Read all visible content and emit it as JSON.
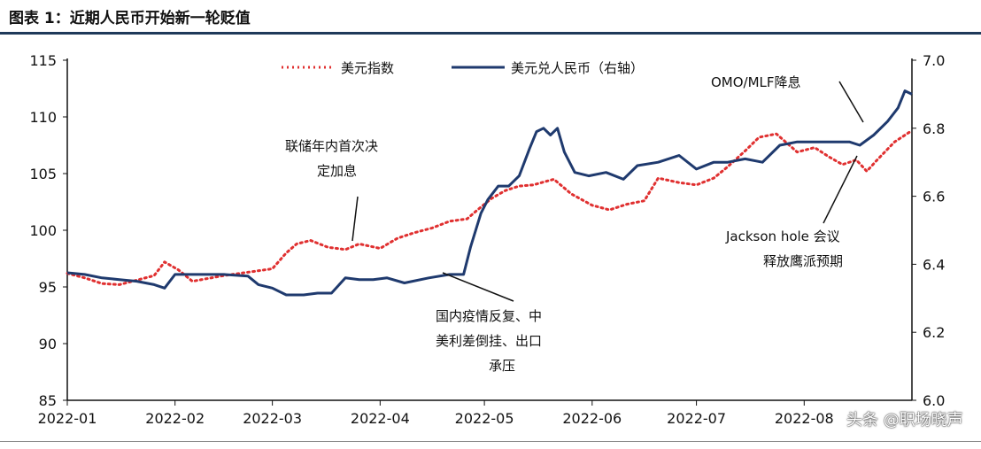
{
  "title": "图表 1：近期人民币开始新一轮贬值",
  "watermark": "头条 @职场晓声",
  "chart_data": {
    "type": "line",
    "title": "图表 1：近期人民币开始新一轮贬值",
    "x_unit": "day of 2022 (0 = Jan 1)",
    "x_tick_labels": [
      "2022-01",
      "2022-02",
      "2022-03",
      "2022-04",
      "2022-05",
      "2022-06",
      "2022-07",
      "2022-08"
    ],
    "x_tick_days": [
      0,
      31,
      59,
      90,
      120,
      151,
      181,
      212
    ],
    "xlim": [
      0,
      243
    ],
    "left_axis": {
      "ylim": [
        85,
        115
      ],
      "ticks": [
        85,
        90,
        95,
        100,
        105,
        110,
        115
      ]
    },
    "right_axis": {
      "ylim": [
        6.0,
        7.0
      ],
      "ticks": [
        "6.0",
        "6.2",
        "6.4",
        "6.6",
        "6.8",
        "7.0"
      ]
    },
    "legend": {
      "placement": "top-center",
      "entries": [
        "美元指数",
        "美元兑人民币（右轴）"
      ]
    },
    "series": [
      {
        "name": "美元指数",
        "axis": "left",
        "color": "#e03030",
        "style": "dotted",
        "x": [
          0,
          5,
          10,
          15,
          20,
          25,
          28,
          32,
          36,
          45,
          52,
          59,
          63,
          66,
          70,
          75,
          80,
          84,
          90,
          95,
          100,
          105,
          110,
          115,
          118,
          122,
          126,
          130,
          134,
          140,
          145,
          151,
          156,
          161,
          166,
          170,
          176,
          181,
          186,
          190,
          195,
          199,
          204,
          210,
          215,
          219,
          223,
          227,
          230,
          233,
          238,
          243
        ],
        "y": [
          96.2,
          95.8,
          95.3,
          95.2,
          95.6,
          96.0,
          97.2,
          96.5,
          95.5,
          96.0,
          96.3,
          96.6,
          98.0,
          98.8,
          99.1,
          98.5,
          98.3,
          98.8,
          98.4,
          99.3,
          99.8,
          100.2,
          100.8,
          101.0,
          101.8,
          102.8,
          103.5,
          103.9,
          104.0,
          104.5,
          103.2,
          102.2,
          101.8,
          102.3,
          102.6,
          104.6,
          104.2,
          104.0,
          104.6,
          105.6,
          107.0,
          108.2,
          108.5,
          106.9,
          107.3,
          106.5,
          105.8,
          106.2,
          105.2,
          106.2,
          107.8,
          108.8
        ]
      },
      {
        "name": "美元兑人民币（右轴）",
        "axis": "right",
        "color": "#1f3a6e",
        "style": "solid",
        "x": [
          0,
          5,
          10,
          15,
          20,
          25,
          28,
          31,
          35,
          45,
          52,
          55,
          59,
          63,
          68,
          72,
          76,
          80,
          84,
          88,
          92,
          97,
          104,
          110,
          114,
          116,
          119,
          121,
          124,
          127,
          130,
          133,
          135,
          137,
          139,
          141,
          143,
          146,
          150,
          155,
          160,
          164,
          170,
          176,
          181,
          186,
          190,
          195,
          200,
          205,
          210,
          215,
          220,
          225,
          228,
          232,
          236,
          239,
          241,
          243
        ],
        "y": [
          6.375,
          6.37,
          6.36,
          6.355,
          6.35,
          6.34,
          6.33,
          6.37,
          6.37,
          6.37,
          6.365,
          6.34,
          6.33,
          6.31,
          6.31,
          6.315,
          6.315,
          6.36,
          6.355,
          6.355,
          6.36,
          6.345,
          6.36,
          6.37,
          6.37,
          6.45,
          6.55,
          6.59,
          6.63,
          6.63,
          6.66,
          6.74,
          6.79,
          6.8,
          6.78,
          6.8,
          6.73,
          6.67,
          6.66,
          6.67,
          6.65,
          6.69,
          6.7,
          6.72,
          6.68,
          6.7,
          6.7,
          6.71,
          6.7,
          6.75,
          6.76,
          6.76,
          6.76,
          6.76,
          6.75,
          6.78,
          6.82,
          6.86,
          6.91,
          6.9
        ]
      }
    ],
    "annotations": [
      {
        "lines": [
          "联储年内首次决",
          "定加息"
        ]
      },
      {
        "lines": [
          "国内疫情反复、中",
          "美利差倒挂、出口",
          "承压"
        ]
      },
      {
        "lines": [
          "Jackson hole 会议",
          "释放鹰派预期"
        ]
      },
      {
        "lines": [
          "OMO/MLF降息"
        ]
      }
    ]
  }
}
